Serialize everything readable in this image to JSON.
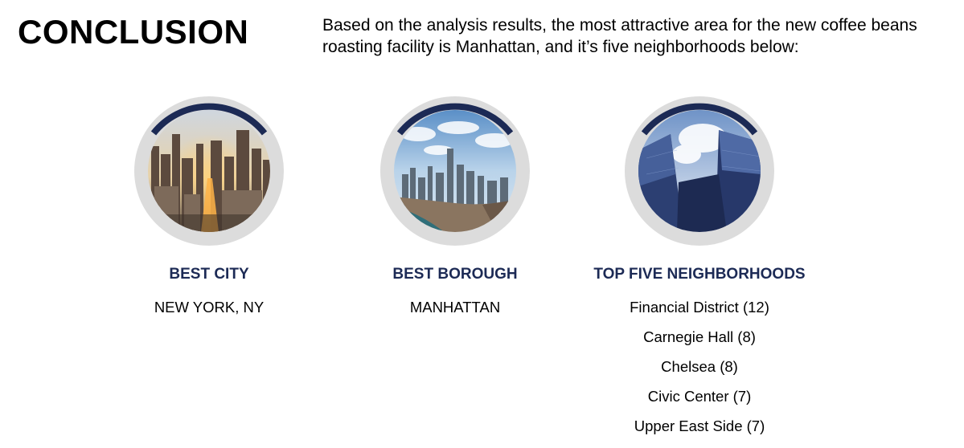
{
  "title": "CONCLUSION",
  "intro": {
    "line1": "Based on the analysis results, the most attractive area for the new coffee beans",
    "line2": "roasting facility is Manhattan, and it’s five neighborhoods below:"
  },
  "colors": {
    "accent": "#1c2a55",
    "ring": "#dcdcdc"
  },
  "cards": [
    {
      "heading": "BEST CITY",
      "image": "city-skyline-photo",
      "values": [
        "NEW YORK, NY"
      ]
    },
    {
      "heading": "BEST BOROUGH",
      "image": "manhattan-aerial-photo",
      "values": [
        "MANHATTAN"
      ]
    },
    {
      "heading": "TOP FIVE NEIGHBORHOODS",
      "image": "skyscrapers-photo",
      "values": [
        "Financial District (12)",
        "Carnegie Hall (8)",
        "Chelsea (8)",
        "Civic Center (7)",
        "Upper East Side (7)"
      ]
    }
  ]
}
